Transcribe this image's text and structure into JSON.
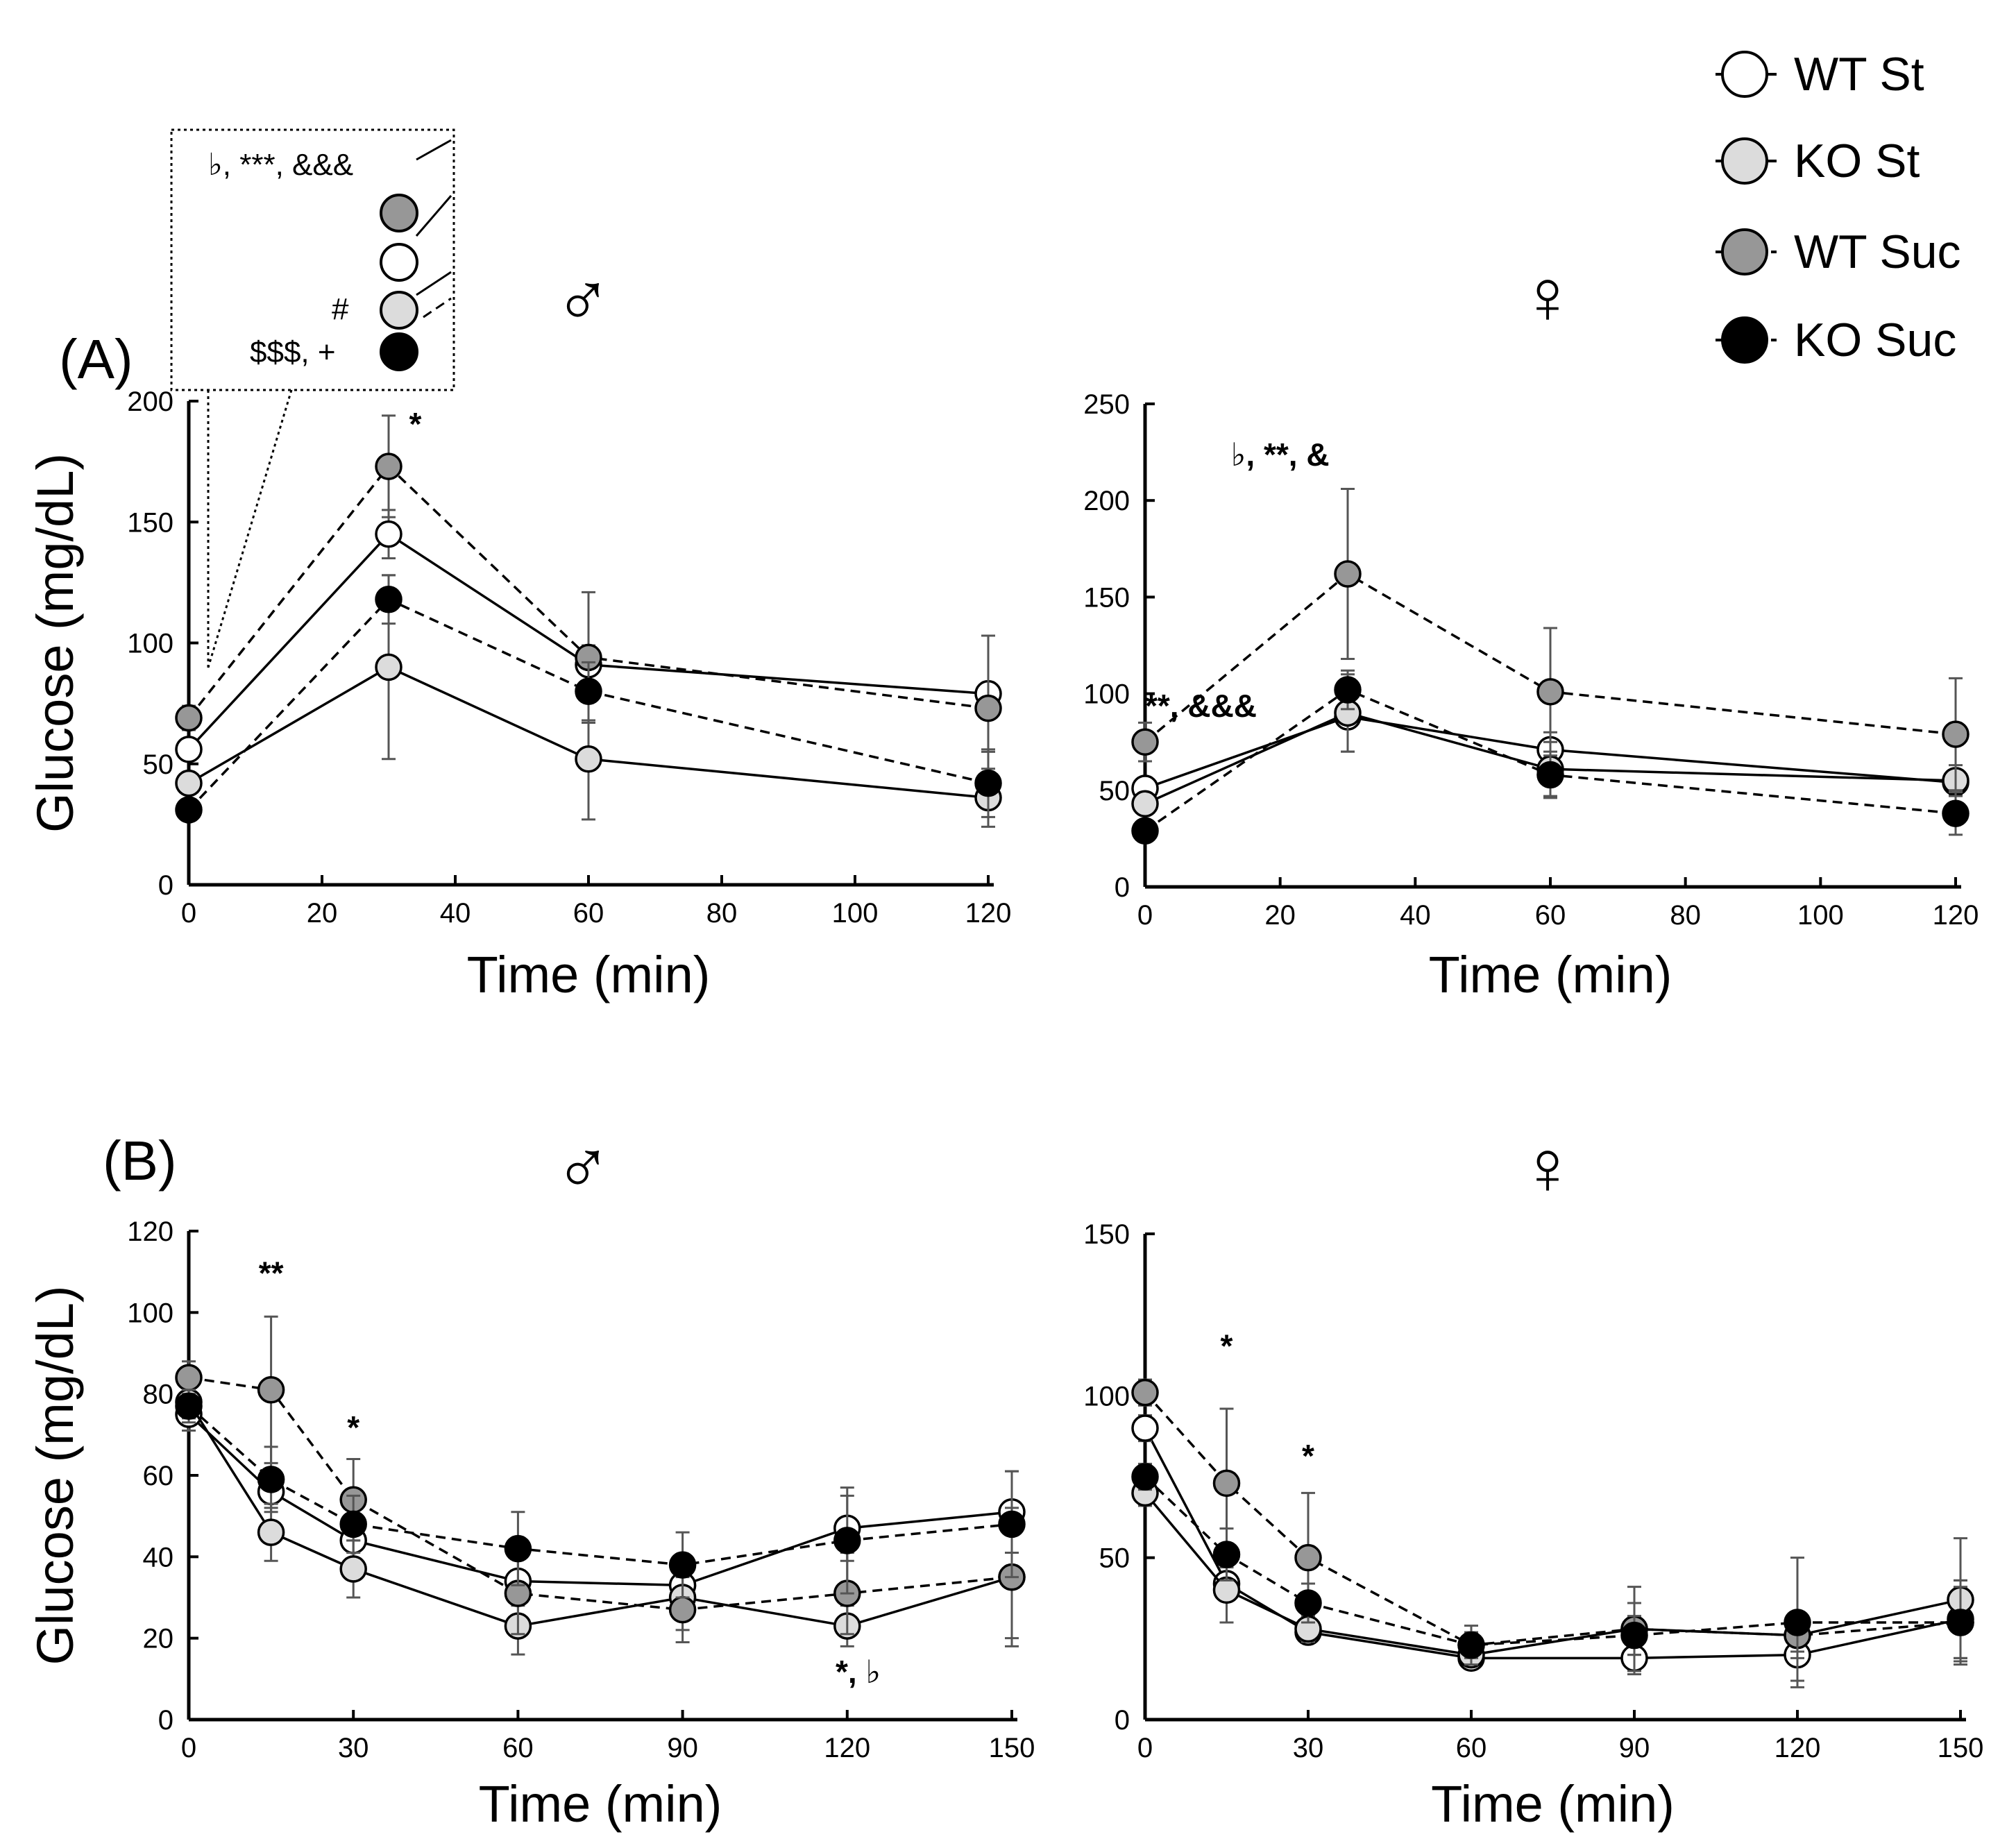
{
  "figure": {
    "panel_a_label": "(A)",
    "panel_b_label": "(B)"
  },
  "legend": {
    "items": [
      {
        "label": "WT St",
        "fill": "#ffffff",
        "dash": "solid"
      },
      {
        "label": "KO St",
        "fill": "#dcdcdc",
        "dash": "solid"
      },
      {
        "label": "WT Suc",
        "fill": "#979797",
        "dash": "dashed"
      },
      {
        "label": "KO Suc",
        "fill": "#000000",
        "dash": "dashed"
      }
    ]
  },
  "inset": {
    "line1": "♭, ***,  &&&",
    "line2": "#",
    "line3": "$$$, +"
  },
  "chart_data": [
    {
      "id": "A-male",
      "type": "line",
      "sex_symbol": "♂",
      "xlabel": "Time (min)",
      "ylabel": "Glucose (mg/dL)",
      "xlim": [
        0,
        120
      ],
      "ylim": [
        0,
        200
      ],
      "xticks": [
        0,
        20,
        40,
        60,
        80,
        100,
        120
      ],
      "yticks": [
        0,
        50,
        100,
        150,
        200
      ],
      "x": [
        0,
        30,
        60,
        120
      ],
      "series": [
        {
          "name": "WT St",
          "values": [
            56,
            145,
            91,
            79
          ],
          "err": [
            4,
            10,
            8,
            24
          ],
          "fill": "#ffffff",
          "dash": "solid"
        },
        {
          "name": "KO St",
          "values": [
            42,
            90,
            52,
            36
          ],
          "err": [
            4,
            38,
            25,
            12
          ],
          "fill": "#dcdcdc",
          "dash": "solid"
        },
        {
          "name": "WT Suc",
          "values": [
            69,
            173,
            94,
            73
          ],
          "err": [
            5,
            21,
            27,
            30
          ],
          "fill": "#979797",
          "dash": "dashed"
        },
        {
          "name": "KO Suc",
          "values": [
            31,
            118,
            80,
            42
          ],
          "err": [
            3,
            10,
            12,
            14
          ],
          "fill": "#000000",
          "dash": "dashed"
        }
      ],
      "annotations": [
        {
          "text": "*",
          "x": 34,
          "y": 186
        }
      ]
    },
    {
      "id": "A-female",
      "type": "line",
      "sex_symbol": "♀",
      "xlabel": "Time (min)",
      "ylabel": "",
      "xlim": [
        0,
        120
      ],
      "ylim": [
        0,
        250
      ],
      "xticks": [
        0,
        20,
        40,
        60,
        80,
        100,
        120
      ],
      "yticks": [
        0,
        50,
        100,
        150,
        200,
        250
      ],
      "x": [
        0,
        30,
        60,
        120
      ],
      "series": [
        {
          "name": "WT St",
          "values": [
            51,
            88,
            71,
            54
          ],
          "err": [
            4,
            18,
            9,
            6
          ],
          "fill": "#ffffff",
          "dash": "solid"
        },
        {
          "name": "KO St",
          "values": [
            43,
            90,
            61,
            55
          ],
          "err": [
            4,
            20,
            14,
            8
          ],
          "fill": "#dcdcdc",
          "dash": "solid"
        },
        {
          "name": "WT Suc",
          "values": [
            75,
            162,
            101,
            79
          ],
          "err": [
            10,
            44,
            33,
            29
          ],
          "fill": "#979797",
          "dash": "dashed"
        },
        {
          "name": "KO Suc",
          "values": [
            29,
            102,
            58,
            38
          ],
          "err": [
            3,
            10,
            12,
            11
          ],
          "fill": "#000000",
          "dash": "dashed"
        }
      ],
      "annotations": [
        {
          "text": "♭, **,  &",
          "x": 20,
          "y": 218
        },
        {
          "text": "**,  &&&",
          "x": 0,
          "y": 88
        }
      ]
    },
    {
      "id": "B-male",
      "type": "line",
      "sex_symbol": "♂",
      "xlabel": "Time (min)",
      "ylabel": "Glucose (mg/dL)",
      "xlim": [
        0,
        150
      ],
      "ylim": [
        0,
        120
      ],
      "xticks": [
        0,
        30,
        60,
        90,
        120,
        150
      ],
      "yticks": [
        0,
        20,
        40,
        60,
        80,
        100,
        120
      ],
      "x": [
        0,
        15,
        30,
        60,
        90,
        120,
        150
      ],
      "series": [
        {
          "name": "WT St",
          "values": [
            75,
            56,
            44,
            34,
            33,
            47,
            51
          ],
          "err": [
            4,
            4,
            5,
            6,
            6,
            8,
            10
          ],
          "fill": "#ffffff",
          "dash": "solid"
        },
        {
          "name": "KO St",
          "values": [
            78,
            46,
            37,
            23,
            30,
            23,
            35
          ],
          "err": [
            4,
            7,
            7,
            7,
            8,
            5,
            17
          ],
          "fill": "#dcdcdc",
          "dash": "solid"
        },
        {
          "name": "WT Suc",
          "values": [
            84,
            81,
            54,
            31,
            27,
            31,
            35
          ],
          "err": [
            4,
            18,
            10,
            10,
            8,
            10,
            15
          ],
          "fill": "#979797",
          "dash": "dashed"
        },
        {
          "name": "KO Suc",
          "values": [
            77,
            59,
            48,
            42,
            38,
            44,
            48
          ],
          "err": [
            4,
            8,
            7,
            9,
            8,
            13,
            13
          ],
          "fill": "#000000",
          "dash": "dashed"
        }
      ],
      "annotations": [
        {
          "text": "**",
          "x": 15,
          "y": 107
        },
        {
          "text": "*",
          "x": 30,
          "y": 69
        },
        {
          "text": "*, ♭",
          "x": 122,
          "y": 9
        }
      ]
    },
    {
      "id": "B-female",
      "type": "line",
      "sex_symbol": "♀",
      "xlabel": "Time (min)",
      "ylabel": "",
      "xlim": [
        0,
        150
      ],
      "ylim": [
        0,
        150
      ],
      "xticks": [
        0,
        30,
        60,
        90,
        120,
        150
      ],
      "yticks": [
        0,
        50,
        100,
        150
      ],
      "x": [
        0,
        15,
        30,
        60,
        90,
        120,
        150
      ],
      "series": [
        {
          "name": "WT St",
          "values": [
            90,
            42,
            27,
            19,
            19,
            20,
            31
          ],
          "err": [
            4,
            5,
            3,
            3,
            5,
            8,
            12
          ],
          "fill": "#ffffff",
          "dash": "solid"
        },
        {
          "name": "KO St",
          "values": [
            70,
            40,
            28,
            20,
            28,
            26,
            37
          ],
          "err": [
            4,
            10,
            4,
            3,
            8,
            7,
            19
          ],
          "fill": "#dcdcdc",
          "dash": "solid"
        },
        {
          "name": "WT Suc",
          "values": [
            101,
            73,
            50,
            23,
            28,
            26,
            30
          ],
          "err": [
            4,
            23,
            20,
            4,
            13,
            5,
            11
          ],
          "fill": "#979797",
          "dash": "dashed"
        },
        {
          "name": "KO Suc",
          "values": [
            75,
            51,
            36,
            23,
            26,
            30,
            30
          ],
          "err": [
            4,
            8,
            6,
            6,
            6,
            20,
            13
          ],
          "fill": "#000000",
          "dash": "dashed"
        }
      ],
      "annotations": [
        {
          "text": "*",
          "x": 15,
          "y": 112
        },
        {
          "text": "*",
          "x": 30,
          "y": 78
        }
      ]
    }
  ]
}
